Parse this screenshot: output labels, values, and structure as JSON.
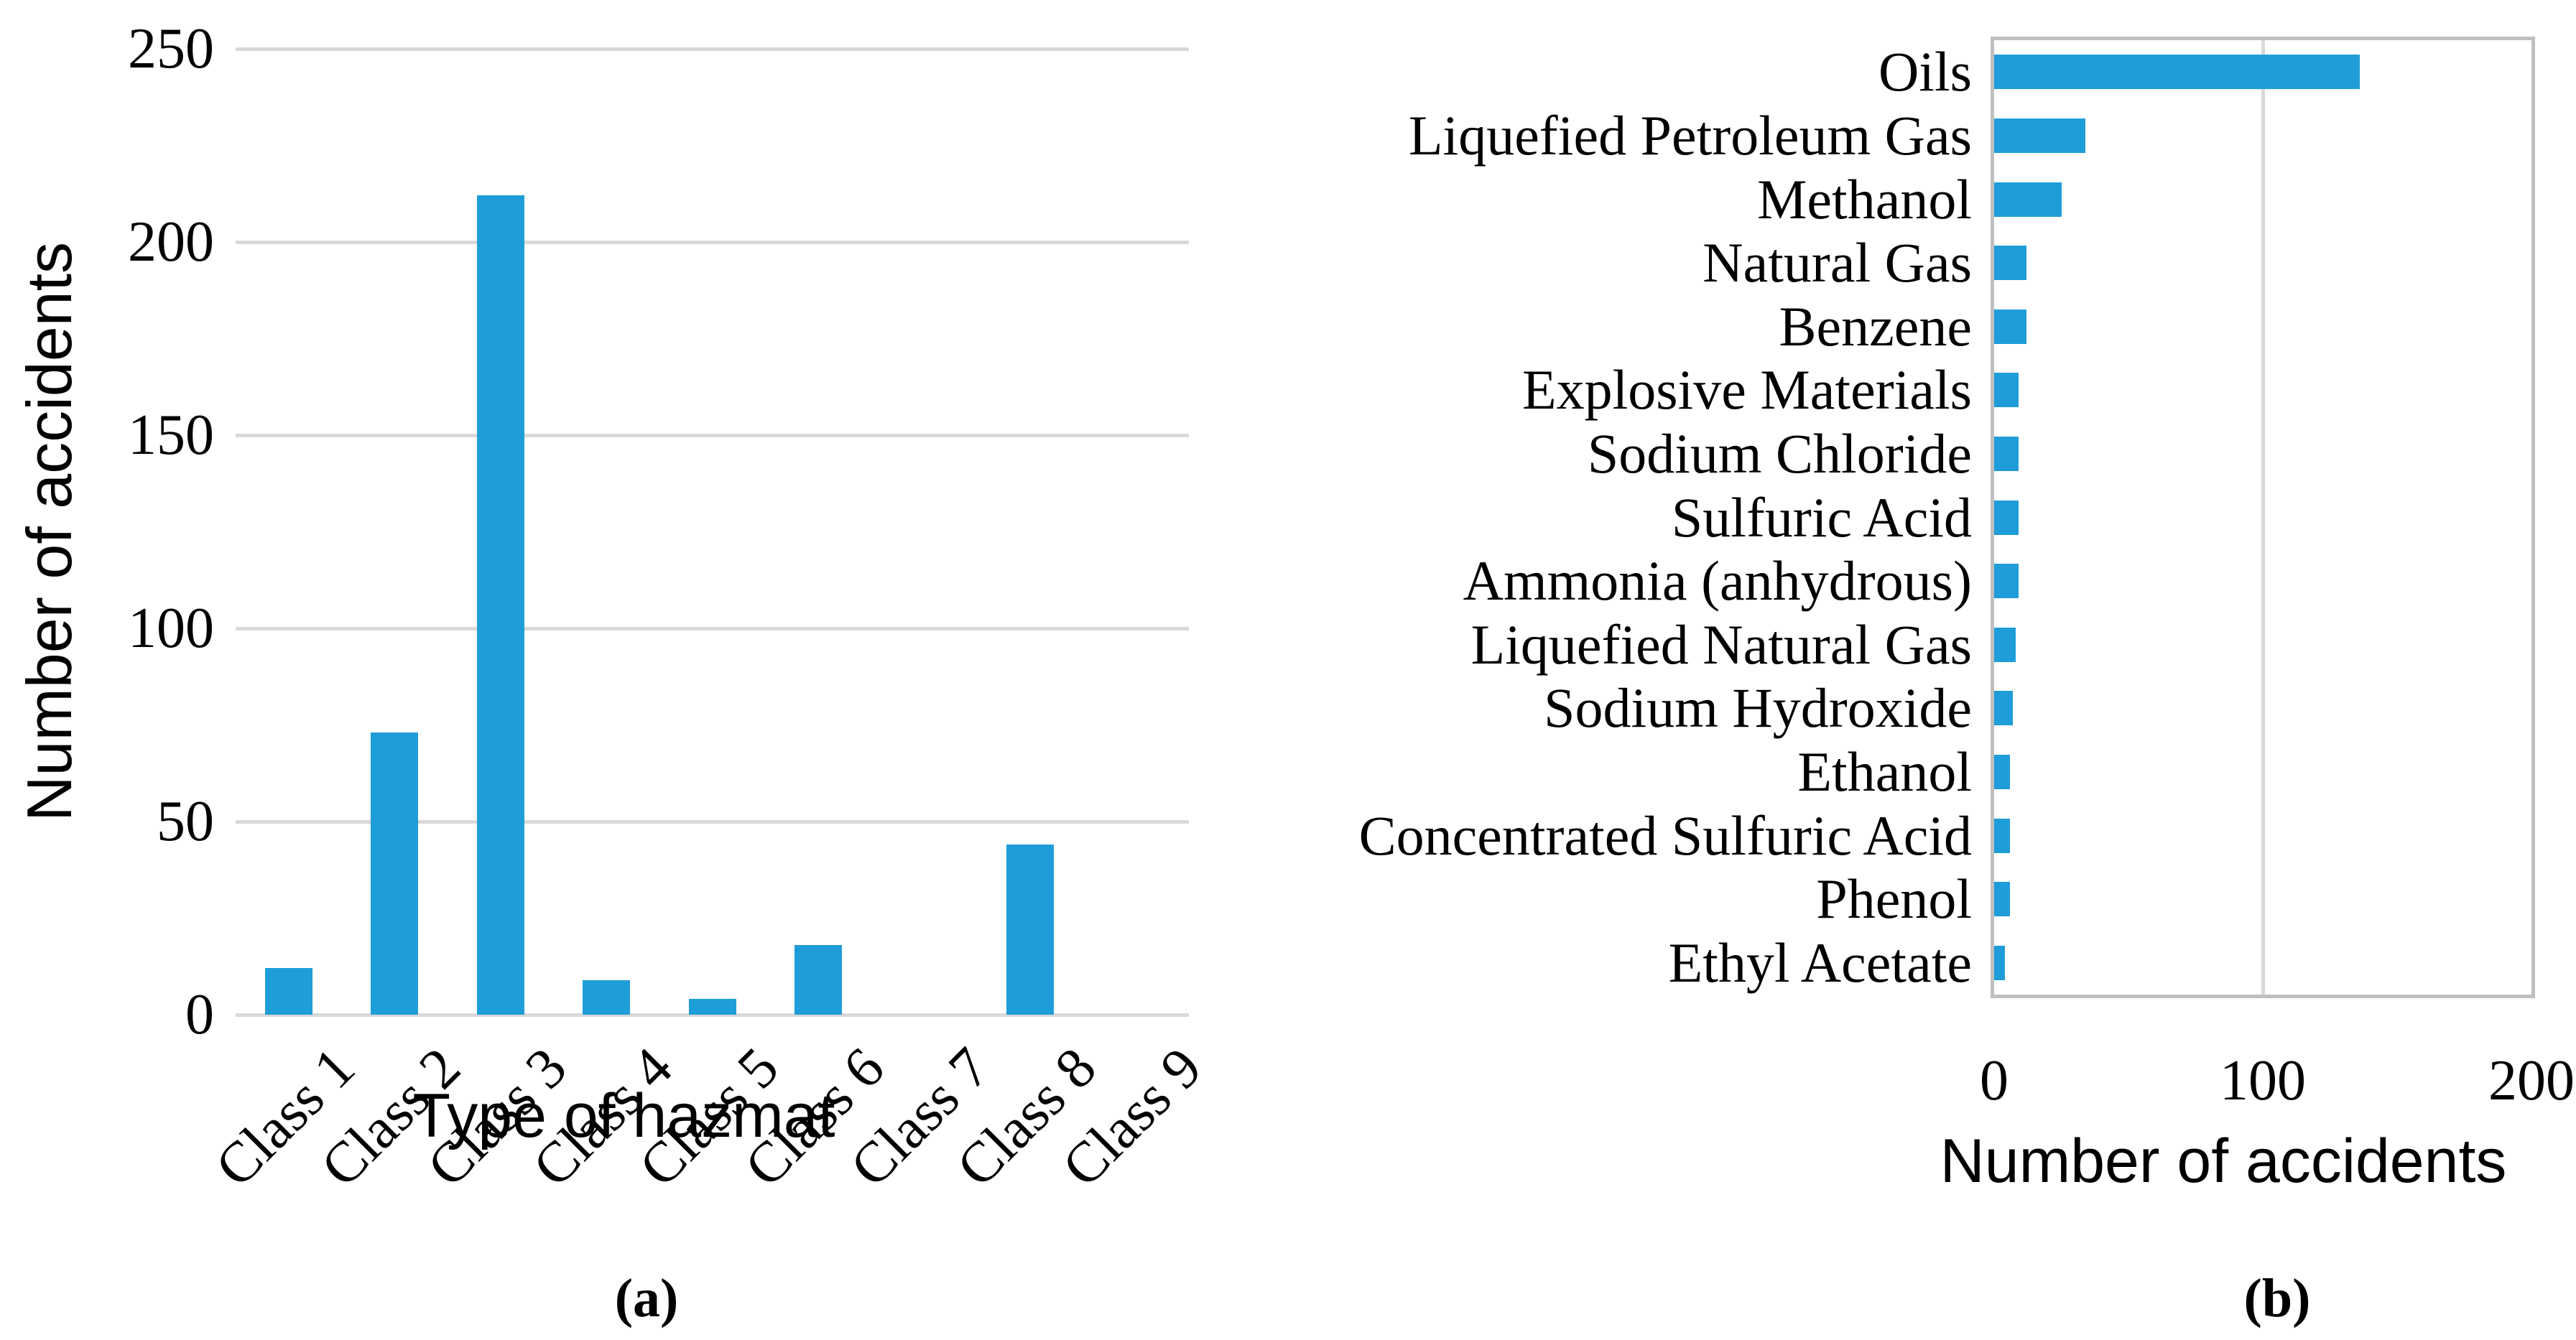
{
  "figure": {
    "bar_color": "#1e9dd8",
    "gridline_color": "#d9d9d9",
    "plot_border_color": "#bfbfbf",
    "background_color": "#ffffff"
  },
  "chart_data": [
    {
      "id": "a",
      "type": "bar",
      "orientation": "vertical",
      "categories": [
        "Class 1",
        "Class 2",
        "Class 3",
        "Class 4",
        "Class 5",
        "Class 6",
        "Class 7",
        "Class 8",
        "Class 9"
      ],
      "values": [
        12,
        73,
        212,
        9,
        4,
        18,
        0,
        44,
        0
      ],
      "xlabel": "Type of hazmat",
      "ylabel": "Number of accidents",
      "ylim": [
        0,
        250
      ],
      "yticks": [
        0,
        50,
        100,
        150,
        200,
        250
      ],
      "grid": "horizontal gridlines only",
      "legend": "none",
      "caption": "(a)"
    },
    {
      "id": "b",
      "type": "bar",
      "orientation": "horizontal",
      "categories": [
        "Oils",
        "Liquefied Petroleum Gas",
        "Methanol",
        "Natural Gas",
        "Benzene",
        "Explosive Materials",
        "Sodium Chloride",
        "Sulfuric Acid",
        "Ammonia (anhydrous)",
        "Liquefied Natural Gas",
        "Sodium Hydroxide",
        "Ethanol",
        "Concentrated Sulfuric Acid",
        "Phenol",
        "Ethyl Acetate"
      ],
      "values": [
        136,
        34,
        25,
        12,
        12,
        9,
        9,
        9,
        9,
        8,
        7,
        6,
        6,
        6,
        4
      ],
      "xlabel": "Number of accidents",
      "ylabel": "",
      "xlim": [
        0,
        200
      ],
      "xticks": [
        0,
        100,
        200
      ],
      "grid": "vertical gridlines only",
      "legend": "none",
      "caption": "(b)"
    }
  ]
}
